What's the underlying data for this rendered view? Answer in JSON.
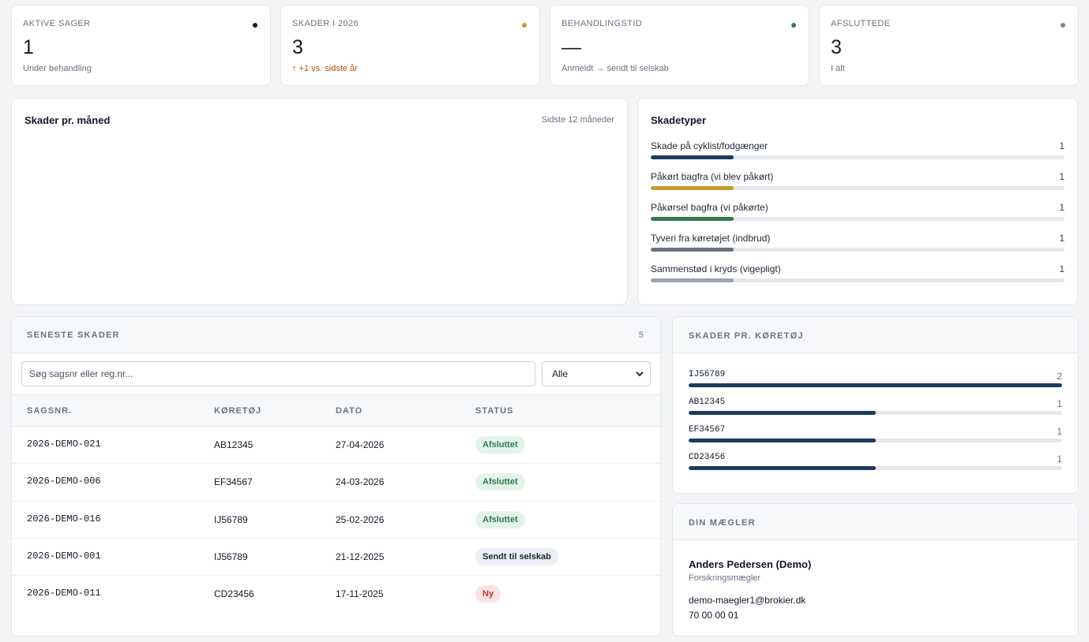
{
  "kpis": [
    {
      "label": "AKTIVE SAGER",
      "value": "1",
      "sub": "Under behandling",
      "dot_color": "#111827"
    },
    {
      "label": "SKADER I 2026",
      "value": "3",
      "sub": "↑ +1 vs. sidste år",
      "dot_color": "#c59b2e"
    },
    {
      "label": "BEHANDLINGSTID",
      "value": "—",
      "sub": "Anmeldt → sendt til selskab",
      "dot_color": "#2f7a4d"
    },
    {
      "label": "AFSLUTTEDE",
      "value": "3",
      "sub": "I alt",
      "dot_color": "#7b8794"
    }
  ],
  "monthly_chart": {
    "title": "Skader pr. måned",
    "period": "Sidste 12 måneder"
  },
  "damage_types": {
    "title": "Skadetyper",
    "items": [
      {
        "name": "Skade på cyklist/fodgænger",
        "count": "1",
        "fraction": 0.2,
        "color": "#1e3a5f"
      },
      {
        "name": "Påkørt bagfra (vi blev påkørt)",
        "count": "1",
        "fraction": 0.2,
        "color": "#c59b2e"
      },
      {
        "name": "Påkørsel bagfra (vi påkørte)",
        "count": "1",
        "fraction": 0.2,
        "color": "#2f7a4d"
      },
      {
        "name": "Tyveri fra køretøjet (indbrud)",
        "count": "1",
        "fraction": 0.2,
        "color": "#6b7280"
      },
      {
        "name": "Sammenstød i kryds (vigepligt)",
        "count": "1",
        "fraction": 0.2,
        "color": "#9ca3af"
      }
    ]
  },
  "recent": {
    "title": "SENESTE SKADER",
    "count": "5",
    "search_placeholder": "Søg sagsnr eller reg.nr...",
    "filter_value": "Alle",
    "columns": [
      "SAGSNR.",
      "KØRETØJ",
      "DATO",
      "STATUS"
    ],
    "rows": [
      {
        "case": "2026-DEMO-021",
        "vehicle": "AB12345",
        "date": "27-04-2026",
        "status": "Afsluttet",
        "kind": "done"
      },
      {
        "case": "2026-DEMO-006",
        "vehicle": "EF34567",
        "date": "24-03-2026",
        "status": "Afsluttet",
        "kind": "done"
      },
      {
        "case": "2026-DEMO-016",
        "vehicle": "IJ56789",
        "date": "25-02-2026",
        "status": "Afsluttet",
        "kind": "done"
      },
      {
        "case": "2026-DEMO-001",
        "vehicle": "IJ56789",
        "date": "21-12-2025",
        "status": "Sendt til selskab",
        "kind": "sent"
      },
      {
        "case": "2026-DEMO-011",
        "vehicle": "CD23456",
        "date": "17-11-2025",
        "status": "Ny",
        "kind": "new"
      }
    ]
  },
  "vehicles": {
    "title": "SKADER PR. KØRETØJ",
    "items": [
      {
        "reg": "IJ56789",
        "count": "2",
        "fraction": 1.0
      },
      {
        "reg": "AB12345",
        "count": "1",
        "fraction": 0.5
      },
      {
        "reg": "EF34567",
        "count": "1",
        "fraction": 0.5
      },
      {
        "reg": "CD23456",
        "count": "1",
        "fraction": 0.5
      }
    ]
  },
  "broker": {
    "title": "DIN MÆGLER",
    "name": "Anders Pedersen (Demo)",
    "role": "Forsikringsmægler",
    "email": "demo-maegler1@brokier.dk",
    "phone": "70 00 00 01"
  },
  "badge_colors": {
    "done": {
      "bg": "#e3f3ea",
      "fg": "#2f7a4d"
    },
    "sent": {
      "bg": "#eceff5",
      "fg": "#1f2937"
    },
    "new": {
      "bg": "#fbe3e3",
      "fg": "#c0392b"
    }
  }
}
